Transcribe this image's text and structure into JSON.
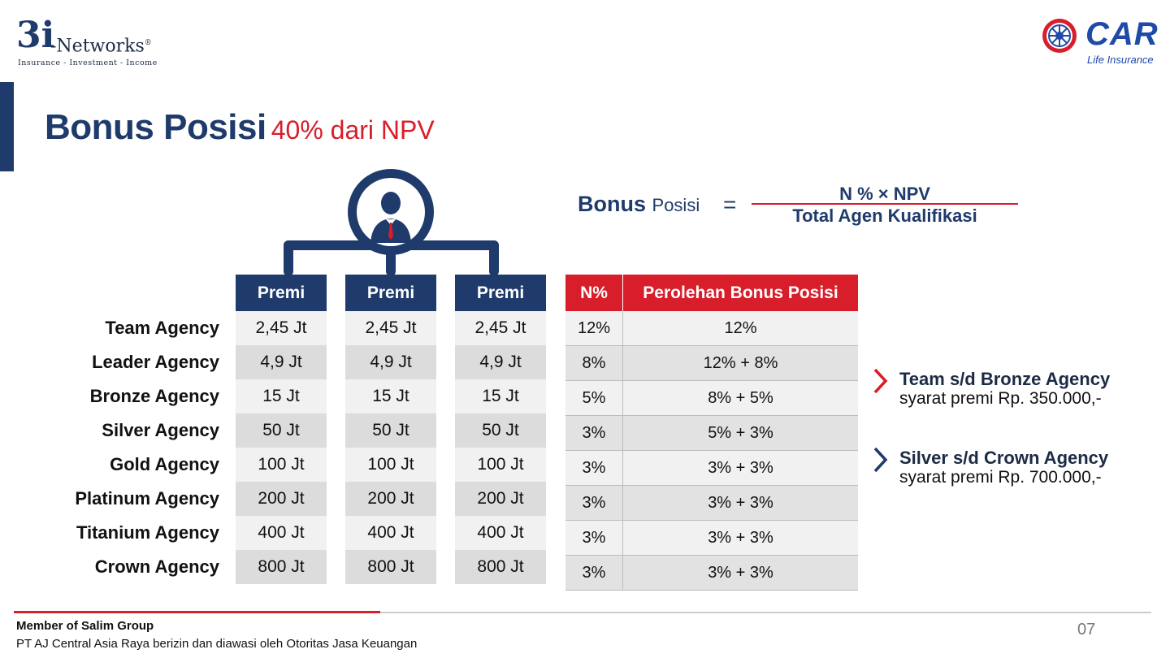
{
  "branding": {
    "left_logo": {
      "mark": "3i",
      "name": "-Networks",
      "reg": "®",
      "tagline": "Insurance - Investment - Income"
    },
    "right_logo": {
      "name": "CAR",
      "sub": "Life Insurance"
    }
  },
  "title": {
    "main": "Bonus Posisi",
    "sub": "40% dari NPV"
  },
  "formula": {
    "lhs_main": "Bonus",
    "lhs_small": "Posisi",
    "equals": "=",
    "numerator": "N % × NPV",
    "denominator": "Total Agen Kualifikasi"
  },
  "premi_table": {
    "header": "Premi",
    "rows": [
      {
        "label": "Team Agency",
        "premi": "2,45 Jt"
      },
      {
        "label": "Leader Agency",
        "premi": "4,9 Jt"
      },
      {
        "label": "Bronze Agency",
        "premi": "15 Jt"
      },
      {
        "label": "Silver Agency",
        "premi": "50 Jt"
      },
      {
        "label": "Gold Agency",
        "premi": "100 Jt"
      },
      {
        "label": "Platinum Agency",
        "premi": "200 Jt"
      },
      {
        "label": "Titanium Agency",
        "premi": "400 Jt"
      },
      {
        "label": "Crown Agency",
        "premi": "800 Jt"
      }
    ]
  },
  "bonus_table": {
    "headers": [
      "N%",
      "Perolehan Bonus Posisi"
    ],
    "rows": [
      [
        "12%",
        "12%"
      ],
      [
        "8%",
        "12% + 8%"
      ],
      [
        "5%",
        "8% + 5%"
      ],
      [
        "3%",
        "5% + 3%"
      ],
      [
        "3%",
        "3% + 3%"
      ],
      [
        "3%",
        "3% + 3%"
      ],
      [
        "3%",
        "3% + 3%"
      ],
      [
        "3%",
        "3% + 3%"
      ]
    ]
  },
  "notes": [
    {
      "heading": "Team s/d Bronze Agency",
      "detail": "syarat premi Rp. 350.000,-",
      "chevron_color": "#d81e2a"
    },
    {
      "heading": "Silver s/d Crown Agency",
      "detail": "syarat premi Rp. 700.000,-",
      "chevron_color": "#1f3b6b"
    }
  ],
  "footer": {
    "line1": "Member of Salim Group",
    "line2": "PT AJ Central Asia Raya berizin dan diawasi oleh Otoritas Jasa Keuangan",
    "page_number": "07"
  },
  "colors": {
    "navy": "#1f3b6b",
    "red": "#d81e2a"
  }
}
